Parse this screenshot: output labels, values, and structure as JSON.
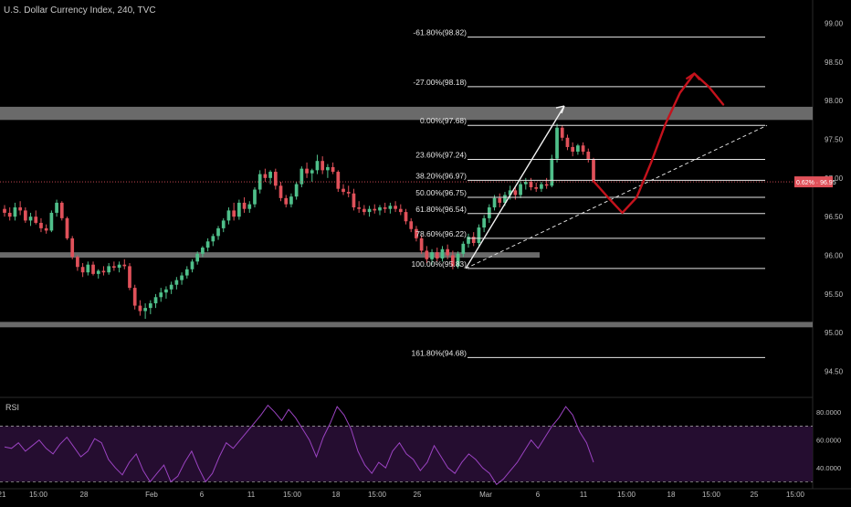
{
  "chart_data": {
    "type": "candlestick",
    "title": "U.S. Dollar Currency Index, 240, TVC",
    "price_axis": {
      "ticks": [
        "99.00",
        "98.50",
        "98.00",
        "97.50",
        "97.00",
        "96.50",
        "96.00",
        "95.50",
        "95.00",
        "94.50"
      ],
      "ylim": [
        94.2,
        99.3
      ]
    },
    "current_price_label": "0.62% · 96.95",
    "current_price": 96.95,
    "time_axis": {
      "ticks": [
        "21",
        "15:00",
        "28",
        "Feb",
        "6",
        "11",
        "15:00",
        "18",
        "15:00",
        "25",
        "Mar",
        "6",
        "11",
        "15:00",
        "18",
        "15:00",
        "25",
        "15:00"
      ]
    },
    "fib_levels": [
      {
        "label": "-61.80%(98.82)",
        "value": 98.82
      },
      {
        "label": "-27.00%(98.18)",
        "value": 98.18
      },
      {
        "label": "0.00%(97.68)",
        "value": 97.68
      },
      {
        "label": "23.60%(97.24)",
        "value": 97.24
      },
      {
        "label": "38.20%(96.97)",
        "value": 96.97
      },
      {
        "label": "50.00%(96.75)",
        "value": 96.75
      },
      {
        "label": "61.80%(96.54)",
        "value": 96.54
      },
      {
        "label": "78.60%(96.22)",
        "value": 96.22
      },
      {
        "label": "100.00%(95.83)",
        "value": 95.83
      },
      {
        "label": "161.80%(94.68)",
        "value": 94.68
      }
    ],
    "zones": [
      {
        "from": 97.75,
        "to": 97.92
      },
      {
        "from": 95.97,
        "to": 96.04
      },
      {
        "from": 95.07,
        "to": 95.14
      }
    ],
    "rsi": {
      "title": "RSI",
      "ticks": [
        "80.0000",
        "60.0000",
        "40.0000"
      ],
      "ylim": [
        25,
        90
      ],
      "bands": [
        70,
        30
      ],
      "values": [
        55,
        54,
        58,
        52,
        56,
        60,
        54,
        50,
        57,
        62,
        55,
        48,
        52,
        61,
        58,
        46,
        40,
        35,
        44,
        50,
        38,
        30,
        36,
        42,
        30,
        34,
        44,
        52,
        40,
        30,
        36,
        48,
        58,
        54,
        60,
        66,
        72,
        78,
        85,
        80,
        74,
        82,
        76,
        68,
        60,
        48,
        62,
        72,
        84,
        78,
        68,
        52,
        42,
        36,
        44,
        40,
        52,
        58,
        50,
        46,
        38,
        44,
        56,
        48,
        40,
        36,
        44,
        50,
        46,
        40,
        36,
        28,
        32,
        38,
        44,
        52,
        60,
        54,
        62,
        70,
        76,
        84,
        78,
        66,
        58,
        44
      ]
    },
    "candles": [
      {
        "o": 96.6,
        "h": 96.65,
        "l": 96.5,
        "c": 96.55
      },
      {
        "o": 96.55,
        "h": 96.62,
        "l": 96.45,
        "c": 96.5
      },
      {
        "o": 96.5,
        "h": 96.68,
        "l": 96.45,
        "c": 96.62
      },
      {
        "o": 96.62,
        "h": 96.7,
        "l": 96.52,
        "c": 96.58
      },
      {
        "o": 96.58,
        "h": 96.62,
        "l": 96.42,
        "c": 96.45
      },
      {
        "o": 96.45,
        "h": 96.55,
        "l": 96.38,
        "c": 96.5
      },
      {
        "o": 96.5,
        "h": 96.58,
        "l": 96.4,
        "c": 96.42
      },
      {
        "o": 96.42,
        "h": 96.48,
        "l": 96.3,
        "c": 96.35
      },
      {
        "o": 96.35,
        "h": 96.4,
        "l": 96.28,
        "c": 96.32
      },
      {
        "o": 96.32,
        "h": 96.58,
        "l": 96.3,
        "c": 96.55
      },
      {
        "o": 96.55,
        "h": 96.72,
        "l": 96.5,
        "c": 96.68
      },
      {
        "o": 96.68,
        "h": 96.7,
        "l": 96.45,
        "c": 96.48
      },
      {
        "o": 96.48,
        "h": 96.5,
        "l": 96.2,
        "c": 96.22
      },
      {
        "o": 96.22,
        "h": 96.25,
        "l": 95.95,
        "c": 95.98
      },
      {
        "o": 95.98,
        "h": 96.0,
        "l": 95.8,
        "c": 95.85
      },
      {
        "o": 95.85,
        "h": 95.9,
        "l": 95.72,
        "c": 95.78
      },
      {
        "o": 95.78,
        "h": 95.92,
        "l": 95.74,
        "c": 95.88
      },
      {
        "o": 95.88,
        "h": 95.92,
        "l": 95.74,
        "c": 95.76
      },
      {
        "o": 95.76,
        "h": 95.82,
        "l": 95.7,
        "c": 95.8
      },
      {
        "o": 95.8,
        "h": 95.86,
        "l": 95.74,
        "c": 95.78
      },
      {
        "o": 95.78,
        "h": 95.9,
        "l": 95.75,
        "c": 95.86
      },
      {
        "o": 95.86,
        "h": 95.92,
        "l": 95.8,
        "c": 95.84
      },
      {
        "o": 95.84,
        "h": 95.92,
        "l": 95.78,
        "c": 95.88
      },
      {
        "o": 95.88,
        "h": 95.95,
        "l": 95.82,
        "c": 95.86
      },
      {
        "o": 95.86,
        "h": 95.9,
        "l": 95.55,
        "c": 95.58
      },
      {
        "o": 95.58,
        "h": 95.62,
        "l": 95.3,
        "c": 95.35
      },
      {
        "o": 95.35,
        "h": 95.42,
        "l": 95.22,
        "c": 95.28
      },
      {
        "o": 95.28,
        "h": 95.38,
        "l": 95.18,
        "c": 95.32
      },
      {
        "o": 95.32,
        "h": 95.42,
        "l": 95.24,
        "c": 95.38
      },
      {
        "o": 95.38,
        "h": 95.5,
        "l": 95.32,
        "c": 95.46
      },
      {
        "o": 95.46,
        "h": 95.58,
        "l": 95.4,
        "c": 95.52
      },
      {
        "o": 95.52,
        "h": 95.6,
        "l": 95.44,
        "c": 95.56
      },
      {
        "o": 95.56,
        "h": 95.66,
        "l": 95.5,
        "c": 95.62
      },
      {
        "o": 95.62,
        "h": 95.72,
        "l": 95.56,
        "c": 95.68
      },
      {
        "o": 95.68,
        "h": 95.78,
        "l": 95.62,
        "c": 95.74
      },
      {
        "o": 95.74,
        "h": 95.86,
        "l": 95.7,
        "c": 95.82
      },
      {
        "o": 95.82,
        "h": 95.95,
        "l": 95.78,
        "c": 95.92
      },
      {
        "o": 95.92,
        "h": 96.05,
        "l": 95.88,
        "c": 96.02
      },
      {
        "o": 96.02,
        "h": 96.12,
        "l": 95.98,
        "c": 96.1
      },
      {
        "o": 96.1,
        "h": 96.22,
        "l": 96.05,
        "c": 96.18
      },
      {
        "o": 96.18,
        "h": 96.28,
        "l": 96.12,
        "c": 96.25
      },
      {
        "o": 96.25,
        "h": 96.38,
        "l": 96.2,
        "c": 96.35
      },
      {
        "o": 96.35,
        "h": 96.48,
        "l": 96.3,
        "c": 96.45
      },
      {
        "o": 96.45,
        "h": 96.62,
        "l": 96.4,
        "c": 96.58
      },
      {
        "o": 96.58,
        "h": 96.68,
        "l": 96.45,
        "c": 96.5
      },
      {
        "o": 96.5,
        "h": 96.72,
        "l": 96.46,
        "c": 96.68
      },
      {
        "o": 96.68,
        "h": 96.75,
        "l": 96.55,
        "c": 96.6
      },
      {
        "o": 96.6,
        "h": 96.7,
        "l": 96.55,
        "c": 96.66
      },
      {
        "o": 96.66,
        "h": 96.88,
        "l": 96.62,
        "c": 96.85
      },
      {
        "o": 96.85,
        "h": 97.1,
        "l": 96.8,
        "c": 97.05
      },
      {
        "o": 97.05,
        "h": 97.12,
        "l": 96.95,
        "c": 97.0
      },
      {
        "o": 97.0,
        "h": 97.1,
        "l": 96.92,
        "c": 97.08
      },
      {
        "o": 97.08,
        "h": 97.12,
        "l": 96.85,
        "c": 96.9
      },
      {
        "o": 96.9,
        "h": 96.95,
        "l": 96.7,
        "c": 96.74
      },
      {
        "o": 96.74,
        "h": 96.78,
        "l": 96.62,
        "c": 96.66
      },
      {
        "o": 96.66,
        "h": 96.8,
        "l": 96.62,
        "c": 96.76
      },
      {
        "o": 96.76,
        "h": 96.95,
        "l": 96.72,
        "c": 96.92
      },
      {
        "o": 96.92,
        "h": 97.15,
        "l": 96.88,
        "c": 97.12
      },
      {
        "o": 97.12,
        "h": 97.2,
        "l": 97.0,
        "c": 97.06
      },
      {
        "o": 97.06,
        "h": 97.12,
        "l": 96.95,
        "c": 97.1
      },
      {
        "o": 97.1,
        "h": 97.3,
        "l": 97.05,
        "c": 97.22
      },
      {
        "o": 97.22,
        "h": 97.28,
        "l": 97.05,
        "c": 97.1
      },
      {
        "o": 97.1,
        "h": 97.18,
        "l": 97.0,
        "c": 97.14
      },
      {
        "o": 97.14,
        "h": 97.2,
        "l": 97.05,
        "c": 97.08
      },
      {
        "o": 97.08,
        "h": 97.1,
        "l": 96.82,
        "c": 96.86
      },
      {
        "o": 96.86,
        "h": 96.92,
        "l": 96.78,
        "c": 96.82
      },
      {
        "o": 96.82,
        "h": 96.9,
        "l": 96.75,
        "c": 96.8
      },
      {
        "o": 96.8,
        "h": 96.86,
        "l": 96.58,
        "c": 96.62
      },
      {
        "o": 96.62,
        "h": 96.7,
        "l": 96.55,
        "c": 96.6
      },
      {
        "o": 96.6,
        "h": 96.65,
        "l": 96.52,
        "c": 96.56
      },
      {
        "o": 96.56,
        "h": 96.64,
        "l": 96.5,
        "c": 96.6
      },
      {
        "o": 96.6,
        "h": 96.66,
        "l": 96.54,
        "c": 96.58
      },
      {
        "o": 96.58,
        "h": 96.65,
        "l": 96.52,
        "c": 96.62
      },
      {
        "o": 96.62,
        "h": 96.68,
        "l": 96.55,
        "c": 96.6
      },
      {
        "o": 96.6,
        "h": 96.68,
        "l": 96.54,
        "c": 96.64
      },
      {
        "o": 96.64,
        "h": 96.7,
        "l": 96.56,
        "c": 96.6
      },
      {
        "o": 96.6,
        "h": 96.66,
        "l": 96.52,
        "c": 96.56
      },
      {
        "o": 96.56,
        "h": 96.6,
        "l": 96.4,
        "c": 96.44
      },
      {
        "o": 96.44,
        "h": 96.48,
        "l": 96.3,
        "c": 96.34
      },
      {
        "o": 96.34,
        "h": 96.38,
        "l": 96.18,
        "c": 96.22
      },
      {
        "o": 96.22,
        "h": 96.26,
        "l": 96.02,
        "c": 96.06
      },
      {
        "o": 96.06,
        "h": 96.12,
        "l": 95.9,
        "c": 95.95
      },
      {
        "o": 95.95,
        "h": 96.08,
        "l": 95.88,
        "c": 96.04
      },
      {
        "o": 96.04,
        "h": 96.1,
        "l": 95.92,
        "c": 95.96
      },
      {
        "o": 95.96,
        "h": 96.12,
        "l": 95.92,
        "c": 96.08
      },
      {
        "o": 96.08,
        "h": 96.14,
        "l": 95.95,
        "c": 96.0
      },
      {
        "o": 96.0,
        "h": 96.06,
        "l": 95.82,
        "c": 95.86
      },
      {
        "o": 95.86,
        "h": 96.05,
        "l": 95.83,
        "c": 96.02
      },
      {
        "o": 96.02,
        "h": 96.18,
        "l": 95.98,
        "c": 96.15
      },
      {
        "o": 96.15,
        "h": 96.28,
        "l": 96.1,
        "c": 96.24
      },
      {
        "o": 96.24,
        "h": 96.3,
        "l": 96.12,
        "c": 96.16
      },
      {
        "o": 96.16,
        "h": 96.4,
        "l": 96.12,
        "c": 96.36
      },
      {
        "o": 96.36,
        "h": 96.52,
        "l": 96.3,
        "c": 96.48
      },
      {
        "o": 96.48,
        "h": 96.66,
        "l": 96.42,
        "c": 96.62
      },
      {
        "o": 96.62,
        "h": 96.78,
        "l": 96.58,
        "c": 96.74
      },
      {
        "o": 96.74,
        "h": 96.8,
        "l": 96.62,
        "c": 96.68
      },
      {
        "o": 96.68,
        "h": 96.82,
        "l": 96.64,
        "c": 96.78
      },
      {
        "o": 96.78,
        "h": 96.9,
        "l": 96.72,
        "c": 96.84
      },
      {
        "o": 96.84,
        "h": 96.88,
        "l": 96.72,
        "c": 96.78
      },
      {
        "o": 96.78,
        "h": 96.96,
        "l": 96.74,
        "c": 96.92
      },
      {
        "o": 96.92,
        "h": 97.0,
        "l": 96.85,
        "c": 96.95
      },
      {
        "o": 96.95,
        "h": 97.0,
        "l": 96.84,
        "c": 96.88
      },
      {
        "o": 96.88,
        "h": 96.94,
        "l": 96.82,
        "c": 96.86
      },
      {
        "o": 96.86,
        "h": 96.95,
        "l": 96.82,
        "c": 96.92
      },
      {
        "o": 96.92,
        "h": 97.0,
        "l": 96.86,
        "c": 96.9
      },
      {
        "o": 96.9,
        "h": 97.3,
        "l": 96.88,
        "c": 97.25
      },
      {
        "o": 97.25,
        "h": 97.7,
        "l": 97.2,
        "c": 97.65
      },
      {
        "o": 97.65,
        "h": 97.68,
        "l": 97.48,
        "c": 97.52
      },
      {
        "o": 97.52,
        "h": 97.56,
        "l": 97.36,
        "c": 97.4
      },
      {
        "o": 97.4,
        "h": 97.46,
        "l": 97.28,
        "c": 97.34
      },
      {
        "o": 97.34,
        "h": 97.44,
        "l": 97.3,
        "c": 97.42
      },
      {
        "o": 97.42,
        "h": 97.46,
        "l": 97.3,
        "c": 97.34
      },
      {
        "o": 97.34,
        "h": 97.38,
        "l": 97.2,
        "c": 97.24
      },
      {
        "o": 97.24,
        "h": 97.26,
        "l": 96.94,
        "c": 96.96
      }
    ],
    "projection": [
      [
        96.96
      ],
      [
        96.75
      ],
      [
        96.55
      ],
      [
        96.75
      ],
      [
        97.2
      ],
      [
        97.7
      ],
      [
        98.1
      ],
      [
        98.35
      ],
      [
        98.18
      ],
      [
        97.95
      ]
    ]
  }
}
